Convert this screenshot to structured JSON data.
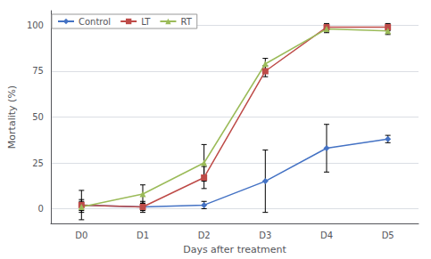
{
  "chart_data": {
    "type": "line",
    "xlabel": "Days after treatment",
    "ylabel": "Mortality (%)",
    "categories": [
      "D0",
      "D1",
      "D2",
      "D3",
      "D4",
      "D5"
    ],
    "series": [
      {
        "name": "Control",
        "color": "#4472C4",
        "marker": "diamond",
        "values": [
          2,
          1,
          2,
          15,
          33,
          38
        ],
        "errors": [
          8,
          2,
          2,
          17,
          13,
          2
        ]
      },
      {
        "name": "LT",
        "color": "#BE4B48",
        "marker": "square",
        "values": [
          2,
          1,
          17,
          75,
          99,
          99
        ],
        "errors": [
          3,
          3,
          6,
          3,
          2,
          2
        ]
      },
      {
        "name": "RT",
        "color": "#9BBB59",
        "marker": "triangle",
        "values": [
          1,
          8,
          25,
          79,
          98,
          97
        ],
        "errors": [
          3,
          5,
          10,
          3,
          2,
          2
        ]
      }
    ],
    "ylim": [
      -8,
      108
    ],
    "yticks": [
      0,
      25,
      50,
      75,
      100
    ],
    "grid": true,
    "legend": "upper left"
  }
}
